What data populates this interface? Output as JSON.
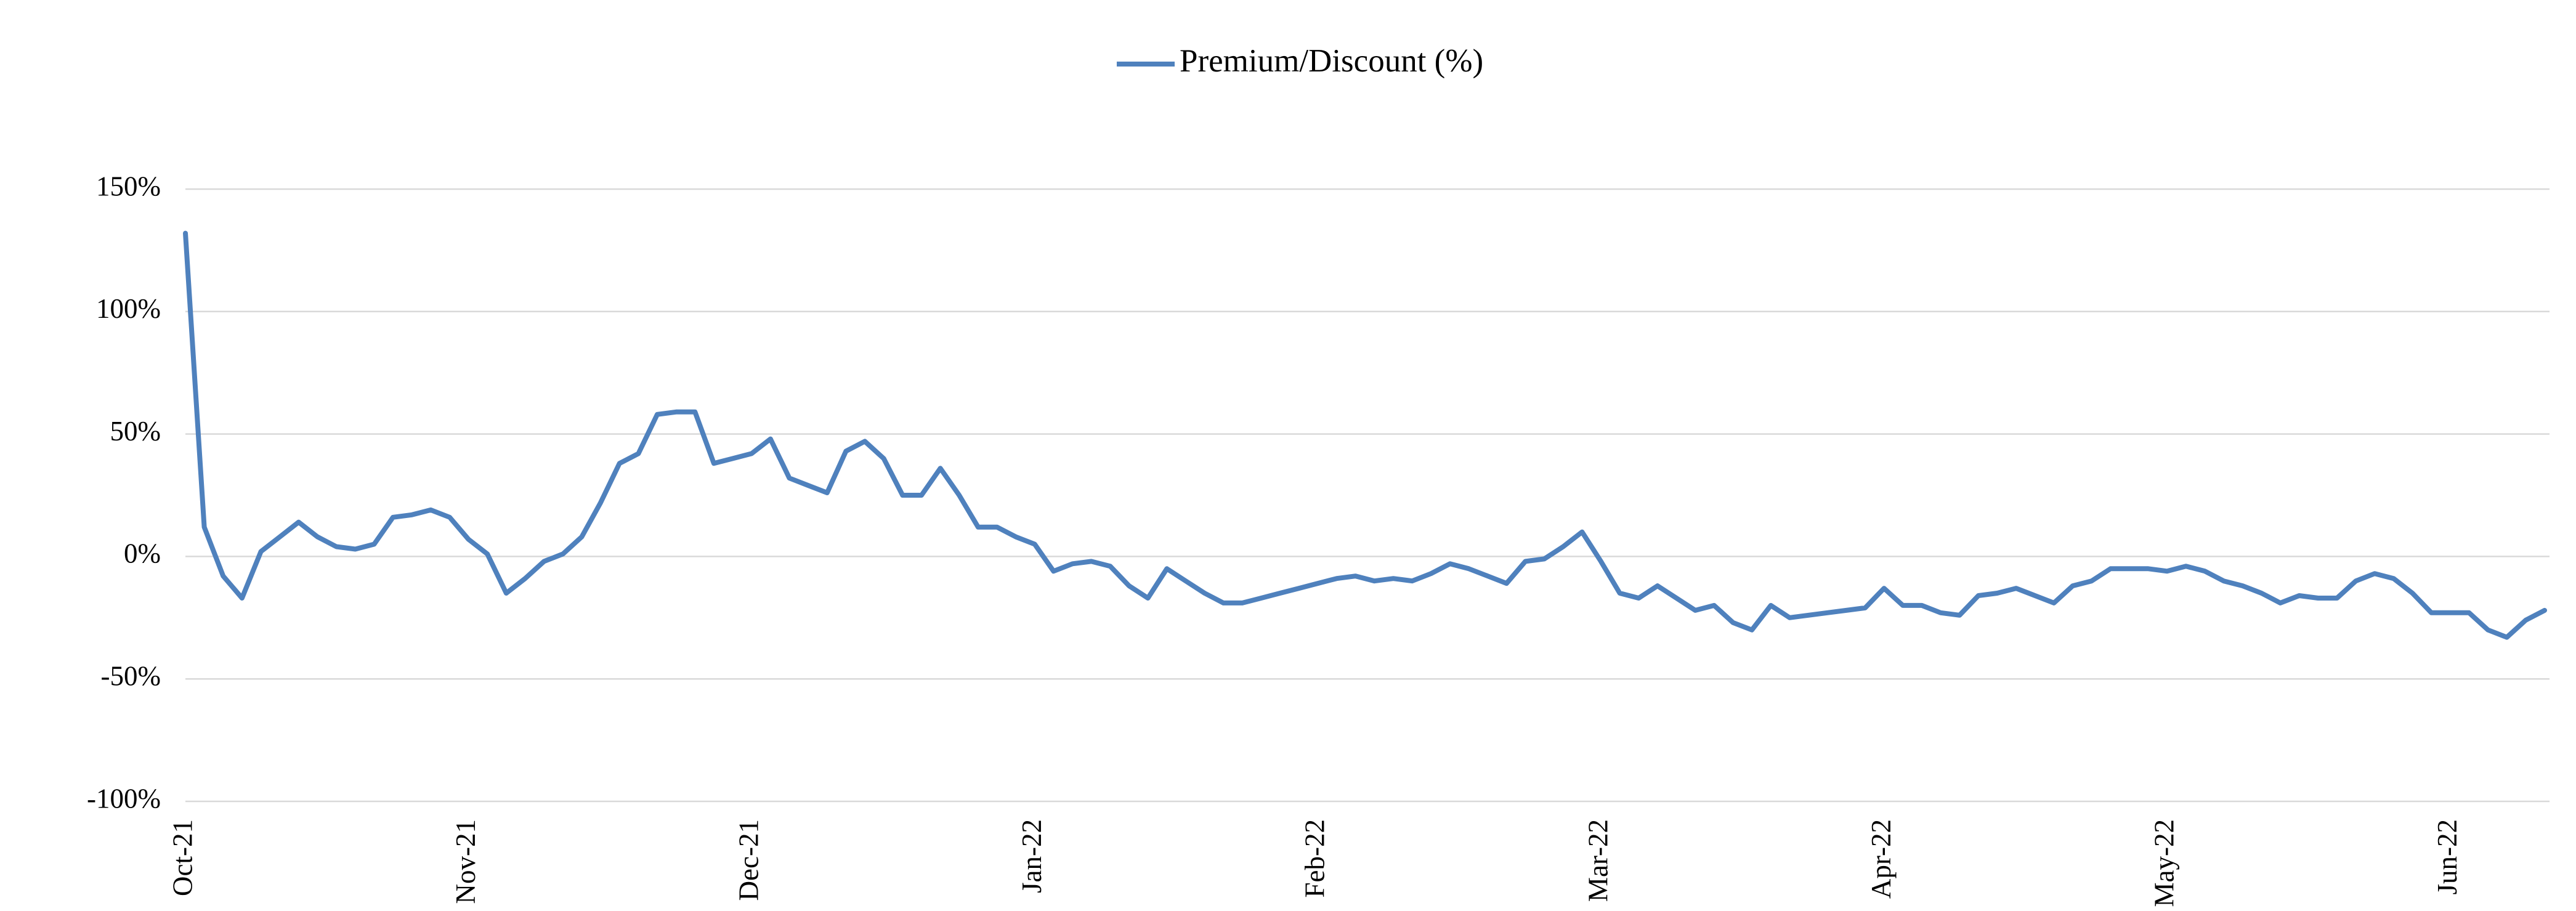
{
  "chart_data": {
    "type": "line",
    "categories": [
      "Oct-21",
      null,
      null,
      null,
      null,
      null,
      null,
      null,
      null,
      null,
      null,
      null,
      null,
      null,
      null,
      "Nov-21",
      null,
      null,
      null,
      null,
      null,
      null,
      null,
      null,
      null,
      null,
      null,
      null,
      null,
      null,
      "Dec-21",
      null,
      null,
      null,
      null,
      null,
      null,
      null,
      null,
      null,
      null,
      null,
      null,
      null,
      null,
      "Jan-22",
      null,
      null,
      null,
      null,
      null,
      null,
      null,
      null,
      null,
      null,
      null,
      null,
      null,
      null,
      "Feb-22",
      null,
      null,
      null,
      null,
      null,
      null,
      null,
      null,
      null,
      null,
      null,
      null,
      null,
      null,
      "Mar-22",
      null,
      null,
      null,
      null,
      null,
      null,
      null,
      null,
      null,
      null,
      null,
      null,
      null,
      null,
      "Apr-22",
      null,
      null,
      null,
      null,
      null,
      null,
      null,
      null,
      null,
      null,
      null,
      null,
      null,
      null,
      "May-22",
      null,
      null,
      null,
      null,
      null,
      null,
      null,
      null,
      null,
      null,
      null,
      null,
      null,
      null,
      "Jun-22",
      null,
      null,
      null,
      null,
      null
    ],
    "series": [
      {
        "name": "Premium/Discount (%)",
        "color": "#4f81bd",
        "values": [
          132,
          12,
          -8,
          -17,
          2,
          8,
          14,
          8,
          4,
          3,
          5,
          16,
          17,
          19,
          16,
          7,
          1,
          -15,
          -9,
          -2,
          1,
          8,
          22,
          38,
          42,
          58,
          59,
          59,
          38,
          40,
          42,
          48,
          32,
          29,
          26,
          43,
          47,
          40,
          25,
          25,
          36,
          25,
          12,
          12,
          8,
          5,
          -6,
          -3,
          -2,
          -4,
          -12,
          -17,
          -5,
          -10,
          -15,
          -19,
          -19,
          -17,
          -15,
          -13,
          -11,
          -9,
          -8,
          -10,
          -9,
          -10,
          -7,
          -3,
          -5,
          -8,
          -11,
          -2,
          -1,
          4,
          10,
          -2,
          -15,
          -17,
          -12,
          -17,
          -22,
          -20,
          -27,
          -30,
          -20,
          -25,
          -24,
          -23,
          -22,
          -21,
          -13,
          -20,
          -20,
          -23,
          -24,
          -16,
          -15,
          -13,
          -16,
          -19,
          -12,
          -10,
          -5,
          -5,
          -5,
          -6,
          -4,
          -6,
          -10,
          -12,
          -15,
          -19,
          -16,
          -17,
          -17,
          -10,
          -7,
          -9,
          -15,
          -23,
          -23,
          -23,
          -30,
          -33,
          -26,
          -22
        ]
      }
    ],
    "ylim": [
      -100,
      150
    ],
    "yticks": [
      {
        "value": -100,
        "label": "-100%"
      },
      {
        "value": -50,
        "label": "-50%"
      },
      {
        "value": 0,
        "label": "0%"
      },
      {
        "value": 50,
        "label": "50%"
      },
      {
        "value": 100,
        "label": "100%"
      },
      {
        "value": 150,
        "label": "150%"
      }
    ],
    "grid": true,
    "legend": "top"
  }
}
